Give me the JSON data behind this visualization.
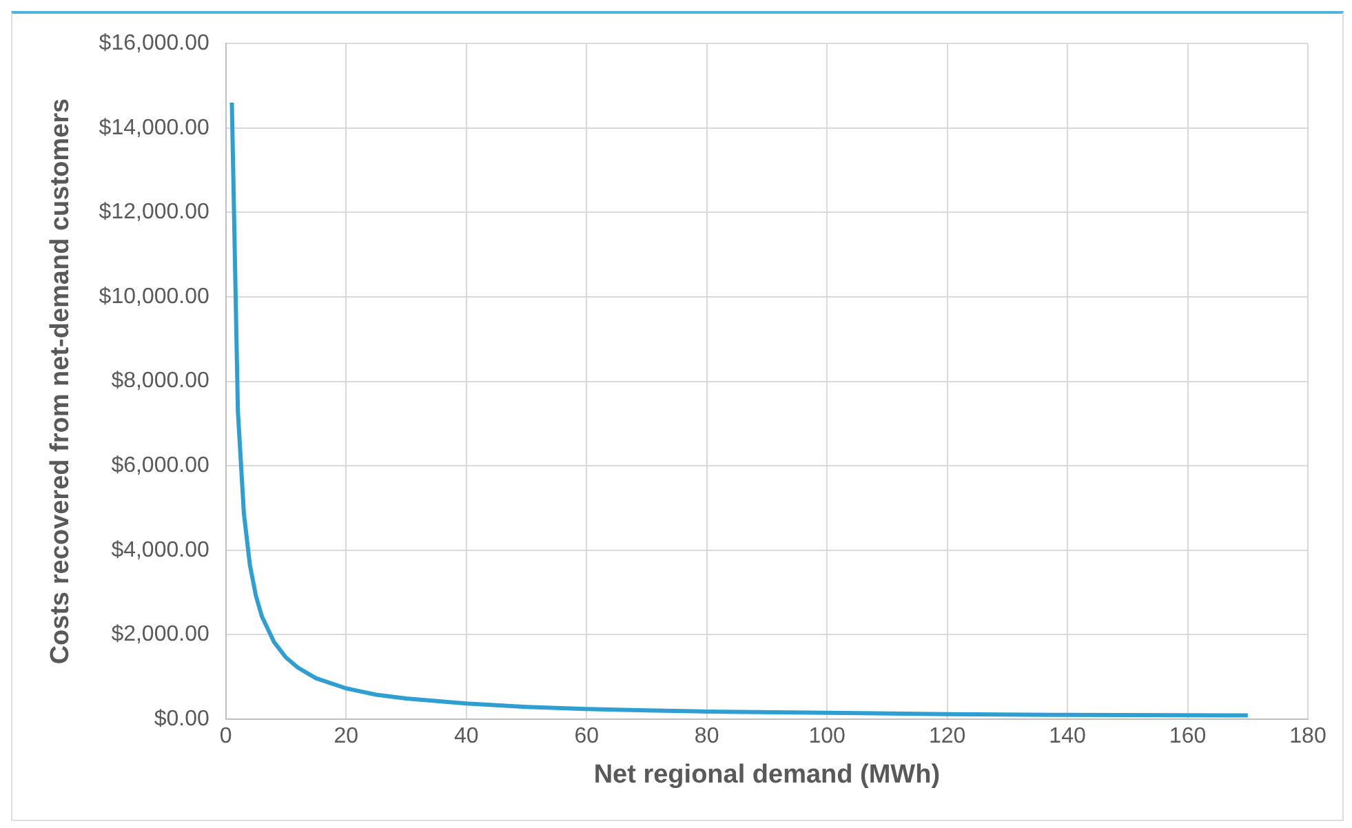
{
  "chart_data": {
    "type": "line",
    "xlabel": "Net regional demand (MWh)",
    "ylabel": "Costs recovered from net-demand customers",
    "x": [
      1,
      2,
      3,
      4,
      5,
      6,
      8,
      10,
      12,
      15,
      20,
      25,
      30,
      40,
      50,
      60,
      70,
      80,
      100,
      120,
      140,
      170
    ],
    "series": [
      {
        "color": "#2e9fd0",
        "values": [
          14600,
          7300,
          4870,
          3650,
          2920,
          2430,
          1830,
          1460,
          1220,
          970,
          730,
          580,
          490,
          370,
          290,
          240,
          210,
          180,
          150,
          120,
          100,
          90
        ]
      }
    ],
    "xlim": [
      0,
      180
    ],
    "xticks": [
      0,
      20,
      40,
      60,
      80,
      100,
      120,
      140,
      160,
      180
    ],
    "ylim": [
      0,
      16000
    ],
    "yticks": [
      {
        "value": 0,
        "label": "$0.00"
      },
      {
        "value": 2000,
        "label": "$2,000.00"
      },
      {
        "value": 4000,
        "label": "$4,000.00"
      },
      {
        "value": 6000,
        "label": "$6,000.00"
      },
      {
        "value": 8000,
        "label": "$8,000.00"
      },
      {
        "value": 10000,
        "label": "$10,000.00"
      },
      {
        "value": 12000,
        "label": "$12,000.00"
      },
      {
        "value": 14000,
        "label": "$14,000.00"
      },
      {
        "value": 16000,
        "label": "$16,000.00"
      }
    ],
    "grid": true,
    "legend": false,
    "marker": "none",
    "line_style": "solid"
  }
}
